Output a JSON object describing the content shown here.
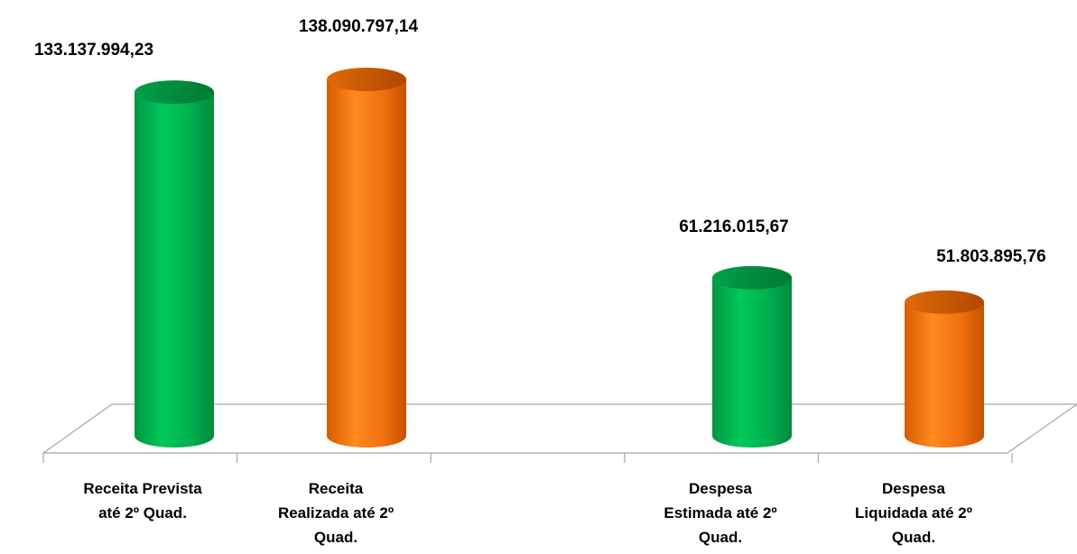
{
  "chart_data": {
    "type": "bar",
    "style": "3d-cylinder",
    "categories": [
      [
        "Receita Prevista",
        "até 2º Quad."
      ],
      [
        "Receita",
        "Realizada até 2º",
        "Quad."
      ],
      [],
      [
        "Despesa",
        "Estimada até 2º",
        "Quad."
      ],
      [
        "Despesa",
        "Liquidada até 2º",
        "Quad."
      ]
    ],
    "values": [
      133137994.23,
      138090797.14,
      null,
      61216015.67,
      51803895.76
    ],
    "value_labels": [
      "133.137.994,23",
      "138.090.797,14",
      "",
      "61.216.015,67",
      "51.803.895,76"
    ],
    "bar_colors": [
      "#00b050",
      "#f07010",
      null,
      "#00b050",
      "#f07010"
    ],
    "ylim": [
      0,
      150000000
    ],
    "grid": false,
    "legend": "none",
    "title": "",
    "xlabel": "",
    "ylabel": ""
  }
}
